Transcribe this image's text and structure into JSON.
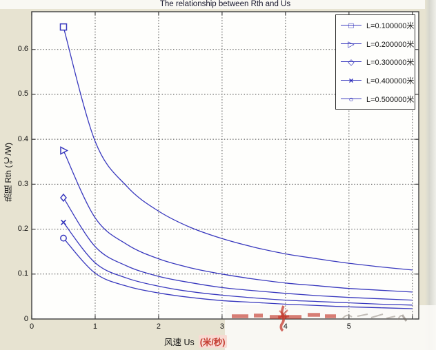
{
  "title": "The relationship between Rth and Us",
  "y_axis": {
    "label": "热阻  Rth (℃/W)",
    "ticks": [
      {
        "v": 0,
        "t": "0"
      },
      {
        "v": 0.1,
        "t": "0.1"
      },
      {
        "v": 0.2,
        "t": "0.2"
      },
      {
        "v": 0.3,
        "t": "0.3"
      },
      {
        "v": 0.4,
        "t": "0.4"
      },
      {
        "v": 0.5,
        "t": "0.5"
      },
      {
        "v": 0.6,
        "t": "0.6"
      }
    ]
  },
  "x_axis": {
    "label": "风速  Us",
    "label_highlight": "(米/秒)",
    "ticks": [
      {
        "v": 0,
        "t": "0"
      },
      {
        "v": 1,
        "t": "1"
      },
      {
        "v": 2,
        "t": "2"
      },
      {
        "v": 3,
        "t": "3"
      },
      {
        "v": 4,
        "t": "4"
      },
      {
        "v": 5,
        "t": "5"
      },
      {
        "v": 6,
        "t": ""
      }
    ]
  },
  "legend": {
    "items": [
      {
        "glyph": "□",
        "label": "L=0.100000米",
        "marker": "square"
      },
      {
        "glyph": "▷",
        "label": "L=0.200000米",
        "marker": "triangle-right"
      },
      {
        "glyph": "◇",
        "label": "L=0.300000米",
        "marker": "diamond"
      },
      {
        "glyph": "×",
        "label": "L=0.400000米",
        "marker": "x"
      },
      {
        "glyph": "○",
        "label": "L=0.500000米",
        "marker": "circle"
      }
    ]
  },
  "chart_data": {
    "type": "line",
    "title": "The relationship between Rth and Us",
    "xlabel": "风速 Us (米/秒)",
    "ylabel": "热阻 Rth (℃/W)",
    "xlim": [
      0,
      6.1
    ],
    "ylim": [
      0,
      0.684
    ],
    "grid": true,
    "legend_position": "upper right",
    "x": [
      0.5,
      1,
      1.5,
      2,
      2.5,
      3,
      3.5,
      4,
      4.5,
      5,
      5.5,
      6
    ],
    "series": [
      {
        "name": "L=0.100000米",
        "marker": "square",
        "values": [
          0.65,
          0.395,
          0.295,
          0.24,
          0.204,
          0.179,
          0.16,
          0.145,
          0.134,
          0.124,
          0.116,
          0.109
        ]
      },
      {
        "name": "L=0.200000米",
        "marker": "triangle-right",
        "values": [
          0.375,
          0.225,
          0.166,
          0.134,
          0.114,
          0.1,
          0.089,
          0.08,
          0.074,
          0.068,
          0.064,
          0.06
        ]
      },
      {
        "name": "L=0.300000米",
        "marker": "diamond",
        "values": [
          0.27,
          0.161,
          0.118,
          0.095,
          0.081,
          0.07,
          0.063,
          0.057,
          0.052,
          0.048,
          0.045,
          0.042
        ]
      },
      {
        "name": "L=0.400000米",
        "marker": "x",
        "values": [
          0.215,
          0.125,
          0.091,
          0.073,
          0.061,
          0.053,
          0.047,
          0.042,
          0.039,
          0.036,
          0.033,
          0.031
        ]
      },
      {
        "name": "L=0.500000米",
        "marker": "circle",
        "values": [
          0.18,
          0.102,
          0.073,
          0.058,
          0.048,
          0.041,
          0.037,
          0.033,
          0.03,
          0.027,
          0.025,
          0.023
        ]
      }
    ]
  },
  "colors": {
    "curve": "#3838BE",
    "figure_bg": "#E7E3D1",
    "plot_bg": "#FEFEFC",
    "grid": "#4D4D4D",
    "axis_box": "#3F3F3F",
    "text": "#111111",
    "watermark_red": "#C33A2E",
    "highlight_pink": "#F8DAD2"
  }
}
